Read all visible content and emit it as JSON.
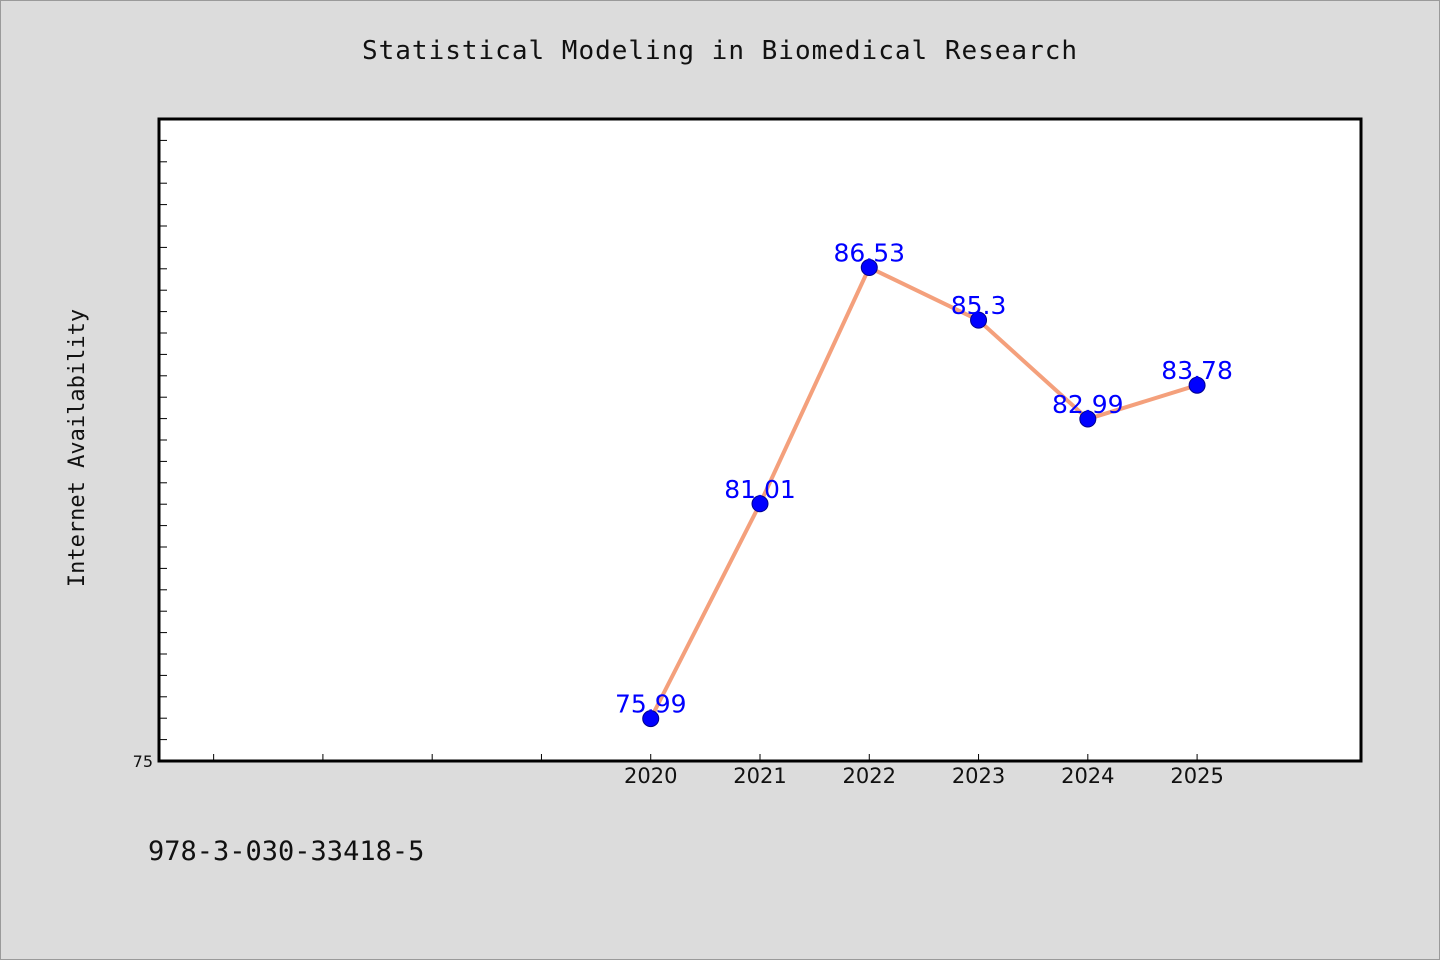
{
  "chart_data": {
    "type": "line",
    "title": "Statistical Modeling in Biomedical Research",
    "ylabel": "Internet Availability",
    "xlabel": "",
    "x": [
      2020,
      2021,
      2022,
      2023,
      2024,
      2025
    ],
    "x_tick_labels": [
      "2020",
      "2021",
      "2022",
      "2023",
      "2024",
      "2025"
    ],
    "xlim": [
      2015.5,
      2026.5
    ],
    "ylim": [
      75,
      90
    ],
    "y_tick_labels": [
      "75"
    ],
    "series": [
      {
        "values": [
          75.99,
          81.01,
          86.53,
          85.3,
          82.99,
          83.78
        ],
        "data_labels": [
          "75.99",
          "81.01",
          "86.53",
          "85.3",
          "82.99",
          "83.78"
        ]
      }
    ],
    "colors": {
      "line": "#f4a07c",
      "marker": "#0000ff",
      "label": "#0000ff",
      "plot_bg": "#ffffff",
      "page_bg": "#dcdcdc"
    },
    "grid": false,
    "legend": "none"
  },
  "footer": {
    "code": "978-3-030-33418-5"
  }
}
